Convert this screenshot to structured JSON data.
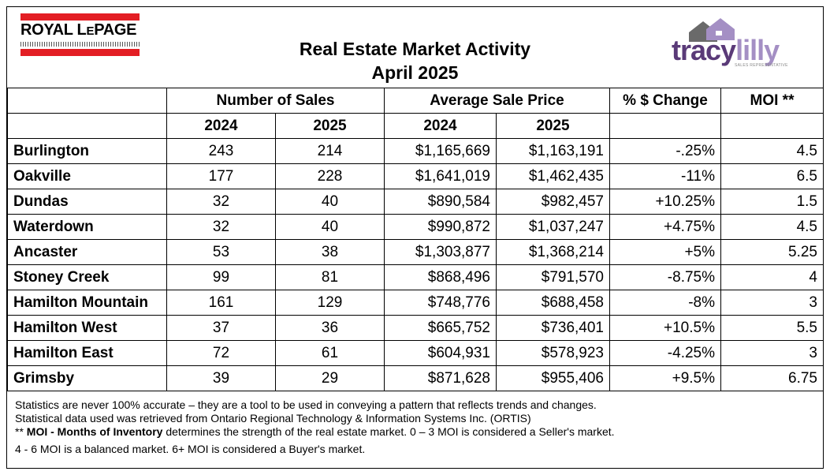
{
  "logos": {
    "left": {
      "line1": "ROYAL L",
      "line1_small": "E",
      "line1_rest": "PAGE",
      "brand_color": "#e31e24"
    },
    "right": {
      "word1": "tracy",
      "word2": "lilly",
      "sub": "SALES REPRESENTATIVE",
      "color_dark": "#5a3a78",
      "color_light": "#a48fc4"
    }
  },
  "title": {
    "line1": "Real Estate Market Activity",
    "line2": "April 2025"
  },
  "table": {
    "group_headers": {
      "sales": "Number of Sales",
      "price": "Average Sale Price",
      "change": "% $ Change",
      "moi": "MOI **"
    },
    "year_headers": {
      "sales_2024": "2024",
      "sales_2025": "2025",
      "price_2024": "2024",
      "price_2025": "2025"
    },
    "rows": [
      {
        "city": "Burlington",
        "s2024": "243",
        "s2025": "214",
        "p2024": "$1,165,669",
        "p2025": "$1,163,191",
        "change": "-.25%",
        "moi": "4.5"
      },
      {
        "city": "Oakville",
        "s2024": "177",
        "s2025": "228",
        "p2024": "$1,641,019",
        "p2025": "$1,462,435",
        "change": "-11%",
        "moi": "6.5"
      },
      {
        "city": "Dundas",
        "s2024": "32",
        "s2025": "40",
        "p2024": "$890,584",
        "p2025": "$982,457",
        "change": "+10.25%",
        "moi": "1.5"
      },
      {
        "city": "Waterdown",
        "s2024": "32",
        "s2025": "40",
        "p2024": "$990,872",
        "p2025": "$1,037,247",
        "change": "+4.75%",
        "moi": "4.5"
      },
      {
        "city": "Ancaster",
        "s2024": "53",
        "s2025": "38",
        "p2024": "$1,303,877",
        "p2025": "$1,368,214",
        "change": "+5%",
        "moi": "5.25"
      },
      {
        "city": "Stoney Creek",
        "s2024": "99",
        "s2025": "81",
        "p2024": "$868,496",
        "p2025": "$791,570",
        "change": "-8.75%",
        "moi": "4"
      },
      {
        "city": "Hamilton Mountain",
        "s2024": "161",
        "s2025": "129",
        "p2024": "$748,776",
        "p2025": "$688,458",
        "change": "-8%",
        "moi": "3"
      },
      {
        "city": "Hamilton West",
        "s2024": "37",
        "s2025": "36",
        "p2024": "$665,752",
        "p2025": "$736,401",
        "change": "+10.5%",
        "moi": "5.5"
      },
      {
        "city": "Hamilton East",
        "s2024": "72",
        "s2025": "61",
        "p2024": "$604,931",
        "p2025": "$578,923",
        "change": "-4.25%",
        "moi": "3"
      },
      {
        "city": "Grimsby",
        "s2024": "39",
        "s2025": "29",
        "p2024": "$871,628",
        "p2025": "$955,406",
        "change": "+9.5%",
        "moi": "6.75"
      }
    ]
  },
  "notes": {
    "line1": "Statistics are never 100% accurate – they are a tool to be used in conveying a pattern that reflects trends and changes.",
    "line2": "Statistical data used was retrieved from Ontario Regional Technology & Information Systems Inc. (ORTIS)",
    "line3_prefix": "** ",
    "line3_bold": "MOI - Months of Inventory",
    "line3_rest": " determines the strength of the real estate market. 0 – 3 MOI is considered a Seller's market.",
    "line4": "4 - 6 MOI is a balanced market. 6+ MOI is considered a Buyer's market."
  }
}
